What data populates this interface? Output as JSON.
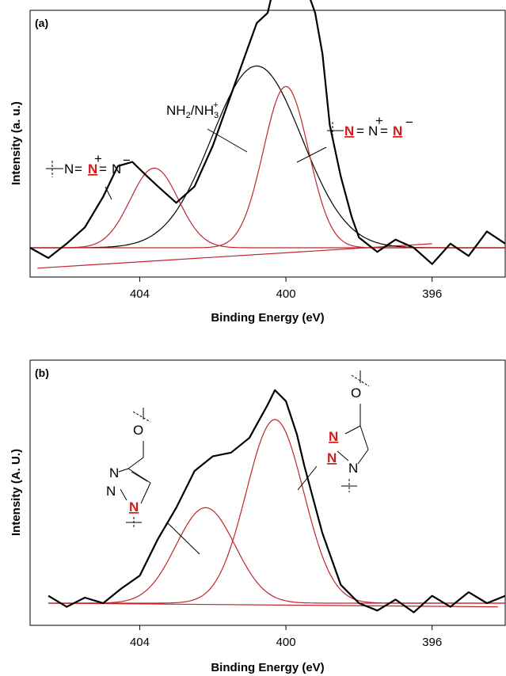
{
  "colors": {
    "data": "#000000",
    "total_fit": "#000000",
    "component_fit": "#c0262b",
    "highlight_atom": "#d11a1a"
  },
  "chart_data": [
    {
      "type": "line",
      "panel_label": "(a)",
      "xlabel": "Binding Energy (eV)",
      "ylabel": "Intensity (a. u.)",
      "xlim": [
        407,
        394
      ],
      "x_reversed": true,
      "xticks": [
        404,
        400,
        396
      ],
      "xtick_labels": [
        "404",
        "400",
        "396"
      ],
      "grid": false,
      "series": [
        {
          "role": "data",
          "x": [
            407.0,
            406.5,
            406.0,
            405.5,
            405.0,
            404.6,
            404.2,
            403.8,
            403.5,
            403.0,
            402.5,
            402.0,
            401.5,
            401.0,
            400.8,
            400.5,
            400.3,
            400.0,
            399.8,
            399.5,
            399.2,
            399.0,
            398.8,
            398.5,
            398.2,
            398.0,
            397.5,
            397.0,
            396.5,
            396.0,
            395.5,
            395.0,
            394.5,
            394.0
          ],
          "y": [
            0.0,
            -0.05,
            0.02,
            0.1,
            0.25,
            0.4,
            0.42,
            0.35,
            0.3,
            0.22,
            0.3,
            0.5,
            0.75,
            1.0,
            1.1,
            1.15,
            1.3,
            1.4,
            1.37,
            1.3,
            1.15,
            0.95,
            0.6,
            0.35,
            0.15,
            0.05,
            -0.02,
            0.04,
            0.0,
            -0.08,
            0.02,
            -0.04,
            0.08,
            0.02
          ]
        },
        {
          "role": "fit",
          "center": 400.8,
          "amplitude": 0.89,
          "fwhm": 2.9
        },
        {
          "role": "fit",
          "center": 400.0,
          "amplitude": 0.79,
          "fwhm": 1.45
        },
        {
          "role": "fit",
          "center": 403.6,
          "amplitude": 0.39,
          "fwhm": 1.55
        },
        {
          "role": "baseline",
          "x": [
            406.8,
            396.0
          ],
          "y": [
            -0.1,
            0.02
          ]
        }
      ],
      "annotations": [
        {
          "label": "NH2/NH3+",
          "base": "NH",
          "sub1": "2",
          "mid": "/NH",
          "sub2": "3",
          "sup": "+"
        },
        {
          "label": "N=N+=N- (central N highlighted)",
          "glyphs": [
            "N",
            "=",
            "N",
            "=",
            "N"
          ],
          "highlight_index": 2,
          "charge_mid": "+",
          "charge_end": "−"
        },
        {
          "label": "N=N+=N- (first N highlighted)",
          "glyphs": [
            "N",
            "=",
            "N",
            "=",
            "N"
          ],
          "highlight_index": 0,
          "charge_mid": "+",
          "charge_end": "−"
        }
      ]
    },
    {
      "type": "line",
      "panel_label": "(b)",
      "xlabel": "Binding Energy (eV)",
      "ylabel": "Intensity (A. U.)",
      "xlim": [
        407,
        394
      ],
      "x_reversed": true,
      "xticks": [
        404,
        400,
        396
      ],
      "xtick_labels": [
        "404",
        "400",
        "396"
      ],
      "grid": false,
      "series": [
        {
          "role": "data",
          "x": [
            406.5,
            406.0,
            405.5,
            405.0,
            404.5,
            404.0,
            403.5,
            403.0,
            402.5,
            402.0,
            401.5,
            401.0,
            400.5,
            400.3,
            400.0,
            399.7,
            399.5,
            399.0,
            398.5,
            398.0,
            397.5,
            397.0,
            396.5,
            396.0,
            395.5,
            395.0,
            394.5,
            394.0
          ],
          "y": [
            0.04,
            -0.02,
            0.03,
            0.0,
            0.08,
            0.15,
            0.35,
            0.52,
            0.72,
            0.8,
            0.82,
            0.9,
            1.08,
            1.16,
            1.1,
            0.92,
            0.75,
            0.38,
            0.1,
            0.0,
            -0.04,
            0.02,
            -0.05,
            0.04,
            -0.02,
            0.06,
            0.0,
            0.04
          ]
        },
        {
          "role": "fit",
          "center": 400.3,
          "amplitude": 1.0,
          "fwhm": 1.85
        },
        {
          "role": "fit",
          "center": 402.2,
          "amplitude": 0.52,
          "fwhm": 1.9
        },
        {
          "role": "baseline",
          "x": [
            406.5,
            394.2
          ],
          "y": [
            0.0,
            -0.02
          ]
        }
      ],
      "annotations": [
        {
          "label": "triazole ring, N1 highlighted",
          "atoms": [
            "N",
            "N",
            "N",
            "O"
          ],
          "highlighted_atom": "N1"
        },
        {
          "label": "triazole ring, N2 and N3 highlighted",
          "atoms": [
            "N",
            "N",
            "N",
            "O"
          ],
          "highlighted_atoms": [
            "N2",
            "N3"
          ]
        }
      ]
    }
  ]
}
